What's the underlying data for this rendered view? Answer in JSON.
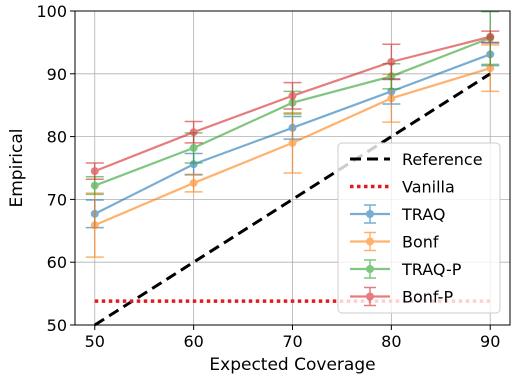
{
  "chart_data": {
    "type": "line",
    "xlabel": "Expected Coverage",
    "ylabel": "Empirical",
    "x": [
      50,
      60,
      70,
      80,
      90
    ],
    "xlim": [
      48,
      92
    ],
    "ylim": [
      50,
      100
    ],
    "xticks": [
      50,
      60,
      70,
      80,
      90
    ],
    "yticks": [
      50,
      60,
      70,
      80,
      90,
      100
    ],
    "grid": true,
    "legend_position": "bottom-right",
    "reference": {
      "name": "Reference",
      "x": [
        50,
        90
      ],
      "y": [
        50,
        90
      ],
      "color": "#000000"
    },
    "vanilla": {
      "name": "Vanilla",
      "y": 53.8,
      "x_range": [
        50,
        90
      ],
      "color": "#e41a1c"
    },
    "series": [
      {
        "name": "TRAQ",
        "color": "#1f77b4",
        "values": [
          67.7,
          75.6,
          81.4,
          87.2,
          93.1
        ],
        "err": [
          [
            65.5,
            69.9
          ],
          [
            73.9,
            77.3
          ],
          [
            79.6,
            83.2
          ],
          [
            85.2,
            89.2
          ],
          [
            91.3,
            94.9
          ]
        ]
      },
      {
        "name": "Bonf",
        "color": "#ff7f0e",
        "values": [
          65.9,
          72.6,
          79.0,
          86.1,
          90.9
        ],
        "err": [
          [
            60.8,
            71.0
          ],
          [
            71.2,
            74.0
          ],
          [
            74.2,
            83.8
          ],
          [
            82.3,
            89.9
          ],
          [
            87.2,
            94.6
          ]
        ]
      },
      {
        "name": "TRAQ-P",
        "color": "#2ca02c",
        "values": [
          72.2,
          78.2,
          85.4,
          89.6,
          95.7
        ],
        "err": [
          [
            70.8,
            73.6
          ],
          [
            75.8,
            80.6
          ],
          [
            83.6,
            87.2
          ],
          [
            87.6,
            91.6
          ],
          [
            91.5,
            99.9
          ]
        ]
      },
      {
        "name": "Bonf-P",
        "color": "#d62728",
        "values": [
          74.5,
          80.7,
          86.5,
          91.9,
          95.9
        ],
        "err": [
          [
            73.2,
            75.8
          ],
          [
            79.0,
            82.4
          ],
          [
            84.4,
            88.6
          ],
          [
            89.1,
            94.7
          ],
          [
            95.0,
            96.8
          ]
        ]
      }
    ]
  }
}
